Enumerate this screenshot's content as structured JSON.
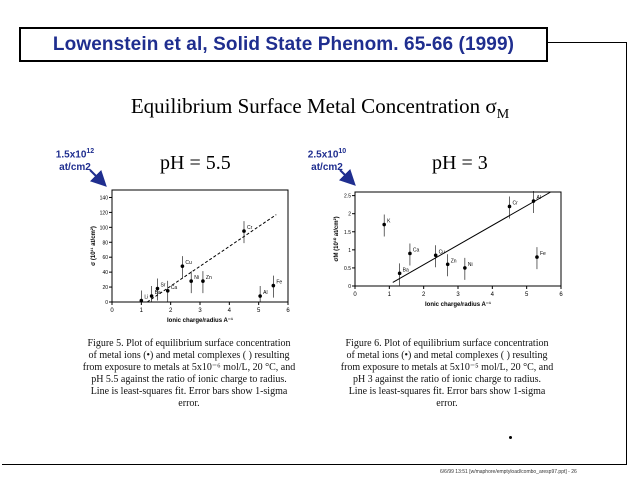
{
  "citation": "Lowenstein et al, Solid State Phenom. 65-66 (1999)",
  "title": {
    "main": "Equilibrium Surface Metal Concentration σ",
    "subscript": "M"
  },
  "left": {
    "ph_label": "pH = 5.5",
    "unit_value": "1.5x10",
    "unit_exp": "12",
    "unit_line2": "at/cm2",
    "caption_lines": [
      "Figure 5.  Plot of equilibrium surface concentration",
      "of metal ions (•) and metal complexes ( )  resulting",
      "from exposure to metals at 5x10⁻⁶ mol/L, 20 °C, and",
      "pH 5.5  against the ratio of ionic charge to radius.",
      "Line is least-squares fit.  Error bars show 1-sigma",
      "error."
    ]
  },
  "right": {
    "ph_label": "pH = 3",
    "unit_value": "2.5x10",
    "unit_exp": "10",
    "unit_line2": "at/cm2",
    "caption_lines": [
      "Figure 6.  Plot of equilibrium surface concentration",
      "of metal ions (•) and metal complexes ( )  resulting",
      "from exposure to metals at 5x10⁻⁵ mol/L, 20 °C, and",
      "pH 3 against the ratio of ionic charge to radius.",
      "Line is least-squares fit.  Error bars show 1-sigma",
      "error."
    ]
  },
  "footer": "6/6/99  13:51  [w/maphore/emptyload/combo_aresp97.ppt] - 26",
  "chart_data": [
    {
      "type": "scatter",
      "xlabel": "Ionic charge/radius A⁻¹",
      "ylabel": "σ (10¹¹ at/cm²)",
      "xlim": [
        0,
        6
      ],
      "ylim": [
        0,
        150
      ],
      "xticks": [
        "0",
        "1",
        "2",
        "3",
        "4",
        "5",
        "6"
      ],
      "yticks": [
        "0",
        "20",
        "40",
        "60",
        "80",
        "100",
        "120",
        "140"
      ],
      "points": [
        {
          "label": "Li",
          "x": 1.0,
          "y": 2
        },
        {
          "label": "Ba",
          "x": 1.35,
          "y": 8
        },
        {
          "label": "Sr",
          "x": 1.55,
          "y": 18
        },
        {
          "label": "Ca",
          "x": 1.9,
          "y": 15
        },
        {
          "label": "Cu",
          "x": 2.4,
          "y": 48
        },
        {
          "label": "Ni",
          "x": 2.7,
          "y": 28
        },
        {
          "label": "Zn",
          "x": 3.1,
          "y": 28
        },
        {
          "label": "Cr",
          "x": 4.5,
          "y": 95
        },
        {
          "label": "Al",
          "x": 5.05,
          "y": 8
        },
        {
          "label": "Fe",
          "x": 5.5,
          "y": 22
        }
      ],
      "fit": {
        "x": [
          1.2,
          5.6
        ],
        "y": [
          0,
          117
        ]
      }
    },
    {
      "type": "scatter",
      "xlabel": "Ionic charge/radius A⁻¹",
      "ylabel": "σM (10¹⁰ at/cm²)",
      "xlim": [
        0,
        6
      ],
      "ylim": [
        0,
        2.6
      ],
      "xticks": [
        "0",
        "1",
        "2",
        "3",
        "4",
        "5",
        "6"
      ],
      "yticks": [
        "0",
        "0.5",
        "1",
        "1.5",
        "2",
        "2.5"
      ],
      "points": [
        {
          "label": "K",
          "x": 0.85,
          "y": 1.7
        },
        {
          "label": "Ba",
          "x": 1.3,
          "y": 0.35
        },
        {
          "label": "Ca",
          "x": 1.6,
          "y": 0.9
        },
        {
          "label": "Cu",
          "x": 2.35,
          "y": 0.85
        },
        {
          "label": "Zn",
          "x": 2.7,
          "y": 0.6
        },
        {
          "label": "Ni",
          "x": 3.2,
          "y": 0.5
        },
        {
          "label": "Cr",
          "x": 4.5,
          "y": 2.2
        },
        {
          "label": "Al",
          "x": 5.2,
          "y": 2.35
        },
        {
          "label": "Fe",
          "x": 5.3,
          "y": 0.8
        }
      ],
      "fit": {
        "x": [
          1.1,
          5.7
        ],
        "y": [
          0.1,
          2.6
        ]
      }
    }
  ]
}
